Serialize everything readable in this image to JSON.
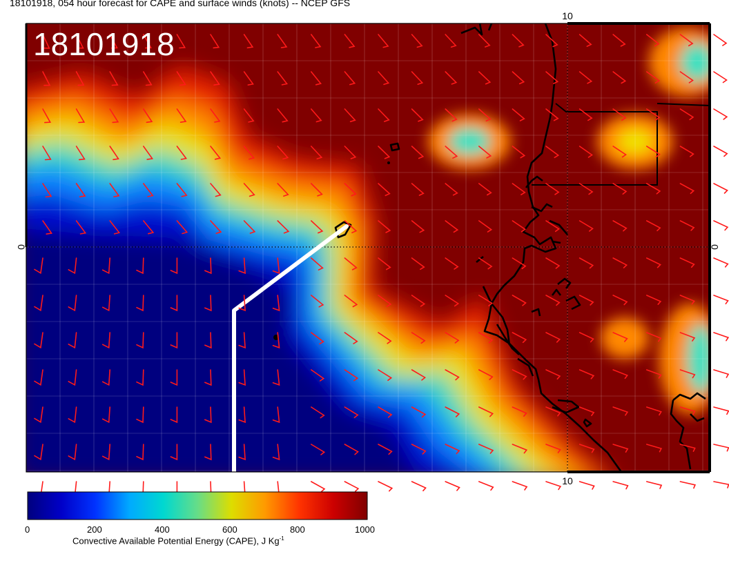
{
  "title": "18101918, 054 hour forecast for CAPE and surface winds (knots) -- NCEP GFS",
  "date_overlay": "18101918",
  "axis_labels": {
    "top_lon": "10",
    "bottom_lon": "10",
    "left_lat": "0",
    "right_lat": "0"
  },
  "colorbar": {
    "ticks": [
      "0",
      "200",
      "400",
      "600",
      "800",
      "1000"
    ],
    "title_main": "Convective Available Potential Energy (CAPE), J Kg",
    "title_sup": "-1",
    "min": 0,
    "max": 1000
  },
  "colors": {
    "wind_barb": "#ff1a1a",
    "coastline": "#000000",
    "track": "#ffffff",
    "cape_low": "#00007f",
    "cape_high": "#800000"
  }
}
